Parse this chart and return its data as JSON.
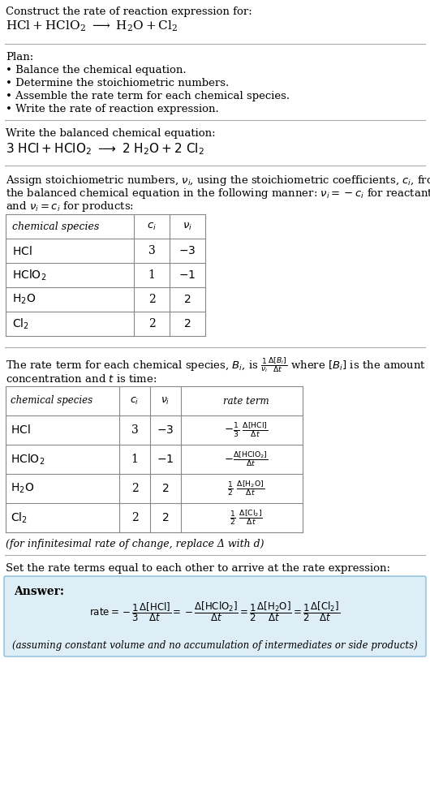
{
  "bg_color": "#ffffff",
  "text_color": "#000000",
  "line_color": "#aaaaaa",
  "answer_box_color": "#ddeef6",
  "answer_box_edge": "#88bbdd",
  "title_text": "Construct the rate of reaction expression for:",
  "plan_header": "Plan:",
  "plan_items": [
    "• Balance the chemical equation.",
    "• Determine the stoichiometric numbers.",
    "• Assemble the rate term for each chemical species.",
    "• Write the rate of reaction expression."
  ],
  "balanced_header": "Write the balanced chemical equation:",
  "stoich_para": [
    "Assign stoichiometric numbers, νi, using the stoichiometric coefficients, ci, from",
    "the balanced chemical equation in the following manner: νi = −ci for reactants",
    "and νi = ci for products:"
  ],
  "rate_para1": "The rate term for each chemical species, Bi, is",
  "rate_para2": "concentration and t is time:",
  "infinitesimal_note": "(for infinitesimal rate of change, replace Δ with d)",
  "final_header": "Set the rate terms equal to each other to arrive at the rate expression:",
  "answer_label": "Answer:",
  "answer_note": "(assuming constant volume and no accumulation of intermediates or side products)"
}
